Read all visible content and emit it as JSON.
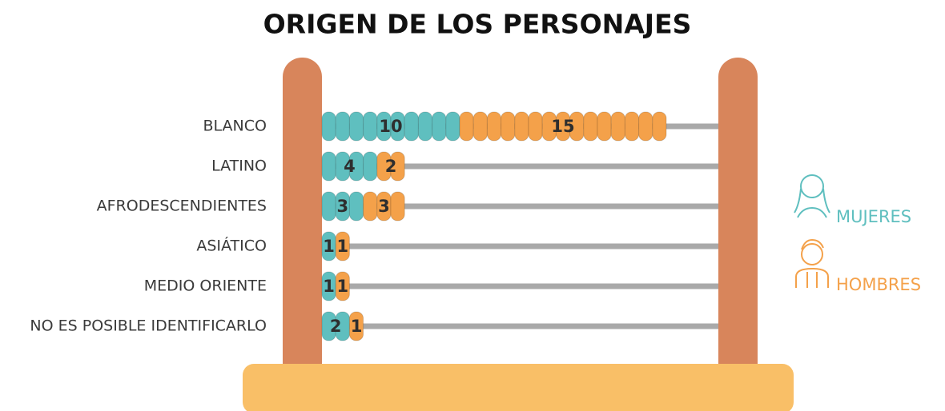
{
  "chart_data": {
    "type": "abacus",
    "title": "ORIGEN DE LOS PERSONAJES",
    "categories": [
      "BLANCO",
      "LATINO",
      "AFRODESCENDIENTES",
      "ASIÁTICO",
      "MEDIO ORIENTE",
      "NO ES POSIBLE IDENTIFICARLO"
    ],
    "series": [
      {
        "name": "MUJERES",
        "color": "#5fbfbf",
        "values": [
          10,
          4,
          3,
          1,
          1,
          2
        ]
      },
      {
        "name": "HOMBRES",
        "color": "#f4a14a",
        "values": [
          15,
          2,
          3,
          1,
          1,
          1
        ]
      }
    ]
  }
}
